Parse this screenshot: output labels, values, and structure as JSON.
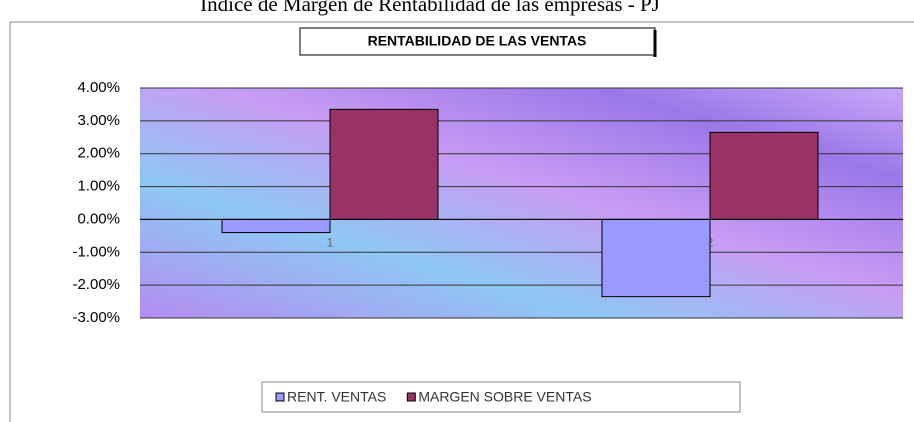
{
  "page_title": "Indice de Margen de Rentabilidad de las empresas - PJ",
  "chart_data": {
    "type": "bar",
    "title": "RENTABILIDAD DE LAS VENTAS",
    "categories": [
      "1",
      "2"
    ],
    "series": [
      {
        "name": "RENT. VENTAS",
        "color": "#9999ff",
        "values": [
          -0.4,
          -2.35
        ]
      },
      {
        "name": "MARGEN SOBRE VENTAS",
        "color": "#993366",
        "values": [
          3.35,
          2.65
        ]
      }
    ],
    "ylim": [
      -3,
      4
    ],
    "yticks": [
      {
        "value": 4,
        "label": "4.00%"
      },
      {
        "value": 3,
        "label": "3.00%"
      },
      {
        "value": 2,
        "label": "2.00%"
      },
      {
        "value": 1,
        "label": "1.00%"
      },
      {
        "value": 0,
        "label": "0.00%"
      },
      {
        "value": -1,
        "label": "-1.00%"
      },
      {
        "value": -2,
        "label": "-2.00%"
      },
      {
        "value": -3,
        "label": "-3.00%"
      }
    ],
    "grid": true,
    "legend": "bottom"
  }
}
